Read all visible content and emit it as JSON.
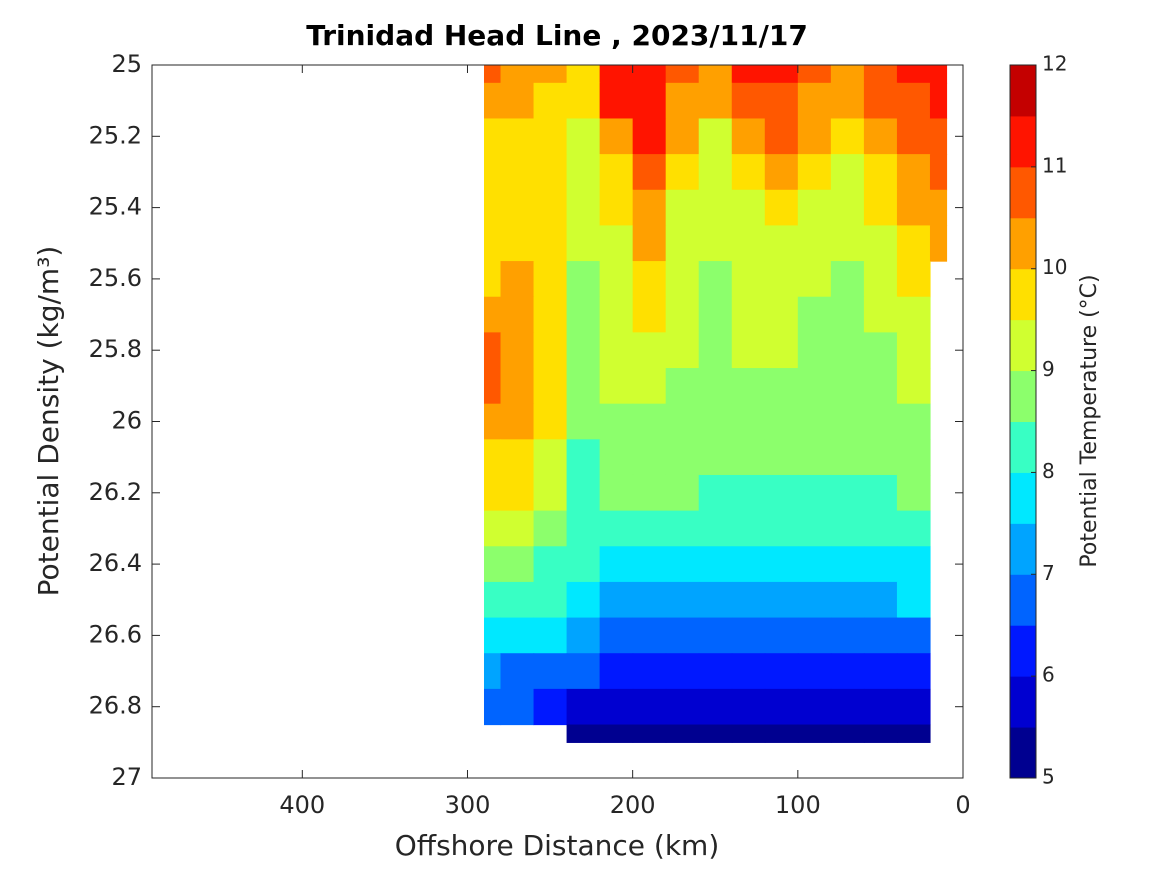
{
  "chart_data": {
    "type": "contour",
    "title": "Trinidad Head Line , 2023/11/17",
    "x_label": "Offshore Distance (km)",
    "y_label": "Potential Density (kg/m³)",
    "colorbar_label": "Potential Temperature (°C)",
    "xlim": [
      491,
      0
    ],
    "ylim": [
      25,
      27
    ],
    "xticks": [
      400,
      300,
      200,
      100,
      0
    ],
    "yticks": [
      25,
      25.2,
      25.4,
      25.6,
      25.8,
      26,
      26.2,
      26.4,
      26.6,
      26.8,
      27
    ],
    "x": [
      290,
      270,
      250,
      230,
      210,
      190,
      170,
      150,
      130,
      110,
      90,
      70,
      50,
      30,
      10
    ],
    "y": [
      25,
      25.1,
      25.2,
      25.3,
      25.4,
      25.5,
      25.6,
      25.7,
      25.8,
      25.9,
      26,
      26.1,
      26.2,
      26.3,
      26.4,
      26.5,
      26.6,
      26.7,
      26.8,
      26.9
    ],
    "z": [
      [
        10.7,
        10.3,
        10.3,
        9.8,
        11.2,
        11.4,
        10.7,
        10.3,
        11.0,
        11.2,
        10.8,
        10.4,
        10.7,
        11.0,
        11.2
      ],
      [
        10.4,
        10.1,
        9.8,
        9.7,
        11.0,
        11.2,
        10.3,
        10.0,
        10.6,
        10.7,
        10.4,
        10.2,
        10.5,
        10.8,
        11.0
      ],
      [
        9.9,
        9.8,
        9.7,
        9.2,
        10.4,
        11.0,
        10.0,
        9.4,
        10.3,
        10.6,
        10.2,
        9.8,
        10.2,
        10.7,
        10.9
      ],
      [
        9.7,
        9.7,
        9.6,
        9.1,
        9.9,
        10.6,
        9.7,
        9.2,
        9.8,
        10.0,
        9.8,
        9.3,
        9.7,
        10.4,
        10.6
      ],
      [
        9.6,
        9.6,
        9.5,
        9.1,
        9.5,
        10.3,
        9.4,
        9.1,
        9.4,
        9.5,
        9.4,
        9.2,
        9.5,
        10.2,
        10.3
      ],
      [
        9.6,
        9.7,
        9.5,
        9.0,
        9.3,
        10.1,
        9.2,
        9.0,
        9.2,
        9.2,
        9.3,
        9.1,
        9.3,
        9.8,
        10.1
      ],
      [
        9.9,
        10.0,
        9.6,
        8.9,
        9.2,
        9.8,
        9.1,
        8.9,
        9.1,
        9.1,
        9.0,
        8.9,
        9.1,
        9.5,
        null
      ],
      [
        10.1,
        10.2,
        9.6,
        8.7,
        9.1,
        9.6,
        9.0,
        8.9,
        9.0,
        9.0,
        8.9,
        8.8,
        9.0,
        9.3,
        null
      ],
      [
        10.6,
        10.2,
        9.6,
        8.6,
        9.0,
        9.3,
        9.0,
        8.9,
        9.0,
        9.0,
        8.8,
        8.8,
        8.9,
        9.1,
        null
      ],
      [
        10.5,
        10.2,
        9.6,
        8.5,
        9.0,
        9.1,
        8.9,
        8.8,
        8.8,
        8.9,
        8.8,
        8.7,
        8.8,
        9.0,
        null
      ],
      [
        10.1,
        10.0,
        9.5,
        8.5,
        8.9,
        8.9,
        8.8,
        8.7,
        8.7,
        8.8,
        8.7,
        8.6,
        8.7,
        8.8,
        null
      ],
      [
        9.7,
        9.8,
        9.4,
        8.4,
        8.8,
        8.7,
        8.6,
        8.6,
        8.6,
        8.6,
        8.6,
        8.5,
        8.6,
        8.7,
        null
      ],
      [
        9.5,
        9.5,
        9.2,
        8.4,
        8.6,
        8.5,
        8.5,
        8.3,
        8.4,
        8.4,
        8.3,
        8.3,
        8.4,
        8.5,
        null
      ],
      [
        9.0,
        9.0,
        8.8,
        8.3,
        8.3,
        8.2,
        8.2,
        8.1,
        8.1,
        8.1,
        8.1,
        8.1,
        8.0,
        8.1,
        null
      ],
      [
        8.8,
        8.7,
        8.4,
        8.0,
        7.9,
        7.9,
        7.9,
        7.8,
        7.8,
        7.8,
        7.8,
        7.8,
        7.8,
        7.8,
        null
      ],
      [
        8.4,
        8.2,
        8.0,
        7.6,
        7.4,
        7.4,
        7.4,
        7.4,
        7.4,
        7.3,
        7.4,
        7.3,
        7.4,
        7.6,
        null
      ],
      [
        7.8,
        7.6,
        7.5,
        7.0,
        6.9,
        6.9,
        6.9,
        6.9,
        6.9,
        6.9,
        6.9,
        6.8,
        6.9,
        6.9,
        null
      ],
      [
        7.1,
        6.8,
        6.8,
        6.5,
        6.3,
        6.3,
        6.4,
        6.4,
        6.4,
        6.3,
        6.4,
        6.3,
        6.3,
        6.3,
        null
      ],
      [
        6.6,
        6.5,
        6.3,
        5.9,
        5.8,
        5.8,
        5.7,
        5.6,
        5.7,
        5.7,
        5.7,
        5.7,
        5.7,
        5.8,
        null
      ],
      [
        null,
        null,
        null,
        5.4,
        5.4,
        5.3,
        5.3,
        5.3,
        5.3,
        5.3,
        5.3,
        5.3,
        5.3,
        5.3,
        null
      ]
    ],
    "levels": [
      5,
      5.5,
      6,
      6.5,
      7,
      7.5,
      8,
      8.5,
      9,
      9.5,
      10,
      10.5,
      11,
      11.5,
      12
    ],
    "colors": [
      "#000090",
      "#0000d0",
      "#0018ff",
      "#0064ff",
      "#00a4ff",
      "#00e8ff",
      "#38ffc4",
      "#8cff6c",
      "#d0ff30",
      "#ffe000",
      "#ffa000",
      "#ff5800",
      "#ff1400",
      "#c40000"
    ],
    "cticks": [
      5,
      6,
      7,
      8,
      9,
      10,
      11,
      12
    ]
  }
}
